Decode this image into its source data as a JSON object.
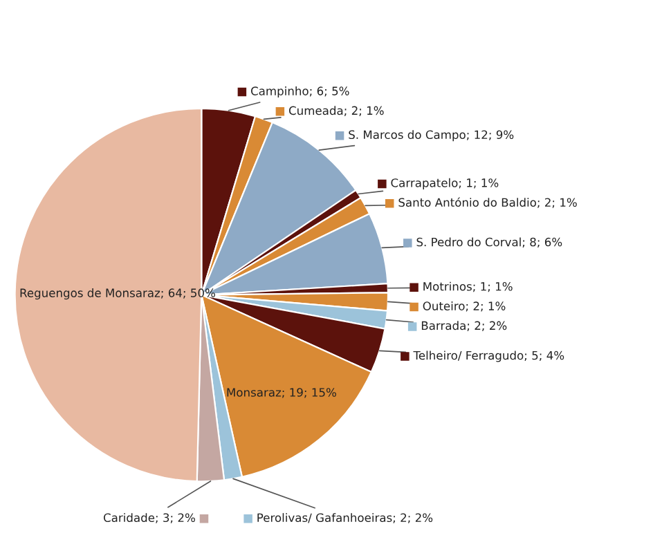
{
  "chart_data": {
    "type": "pie",
    "categories": [
      "Campinho",
      "Cumeada",
      "S. Marcos do Campo",
      "Carrapatelo",
      "Santo António do Baldio",
      "S. Pedro do Corval",
      "Motrinos",
      "Outeiro",
      "Barrada",
      "Telheiro/ Ferragudo",
      "Monsaraz",
      "Perolivas/ Gafanhoeiras",
      "Caridade",
      "Reguengos de Monsaraz"
    ],
    "values": [
      6,
      2,
      12,
      1,
      2,
      8,
      1,
      2,
      2,
      5,
      19,
      2,
      3,
      64
    ],
    "value_labels": [
      "6; 5%",
      "2; 1%",
      "12; 9%",
      "1; 1%",
      "2; 1%",
      "8; 6%",
      "1; 1%",
      "2; 1%",
      "2; 2%",
      "5; 4%",
      "19; 15%",
      "2; 2%",
      "3; 2%",
      "64; 50%"
    ],
    "legend": "right",
    "colors": [
      "#5c120c",
      "#d98a35",
      "#8eaac6",
      "#5c120c",
      "#d98a35",
      "#8eaac6",
      "#5c120c",
      "#d98a35",
      "#9cc3da",
      "#5c120c",
      "#d98a35",
      "#9cc3da",
      "#c4a7a2",
      "#e8b9a1"
    ]
  }
}
